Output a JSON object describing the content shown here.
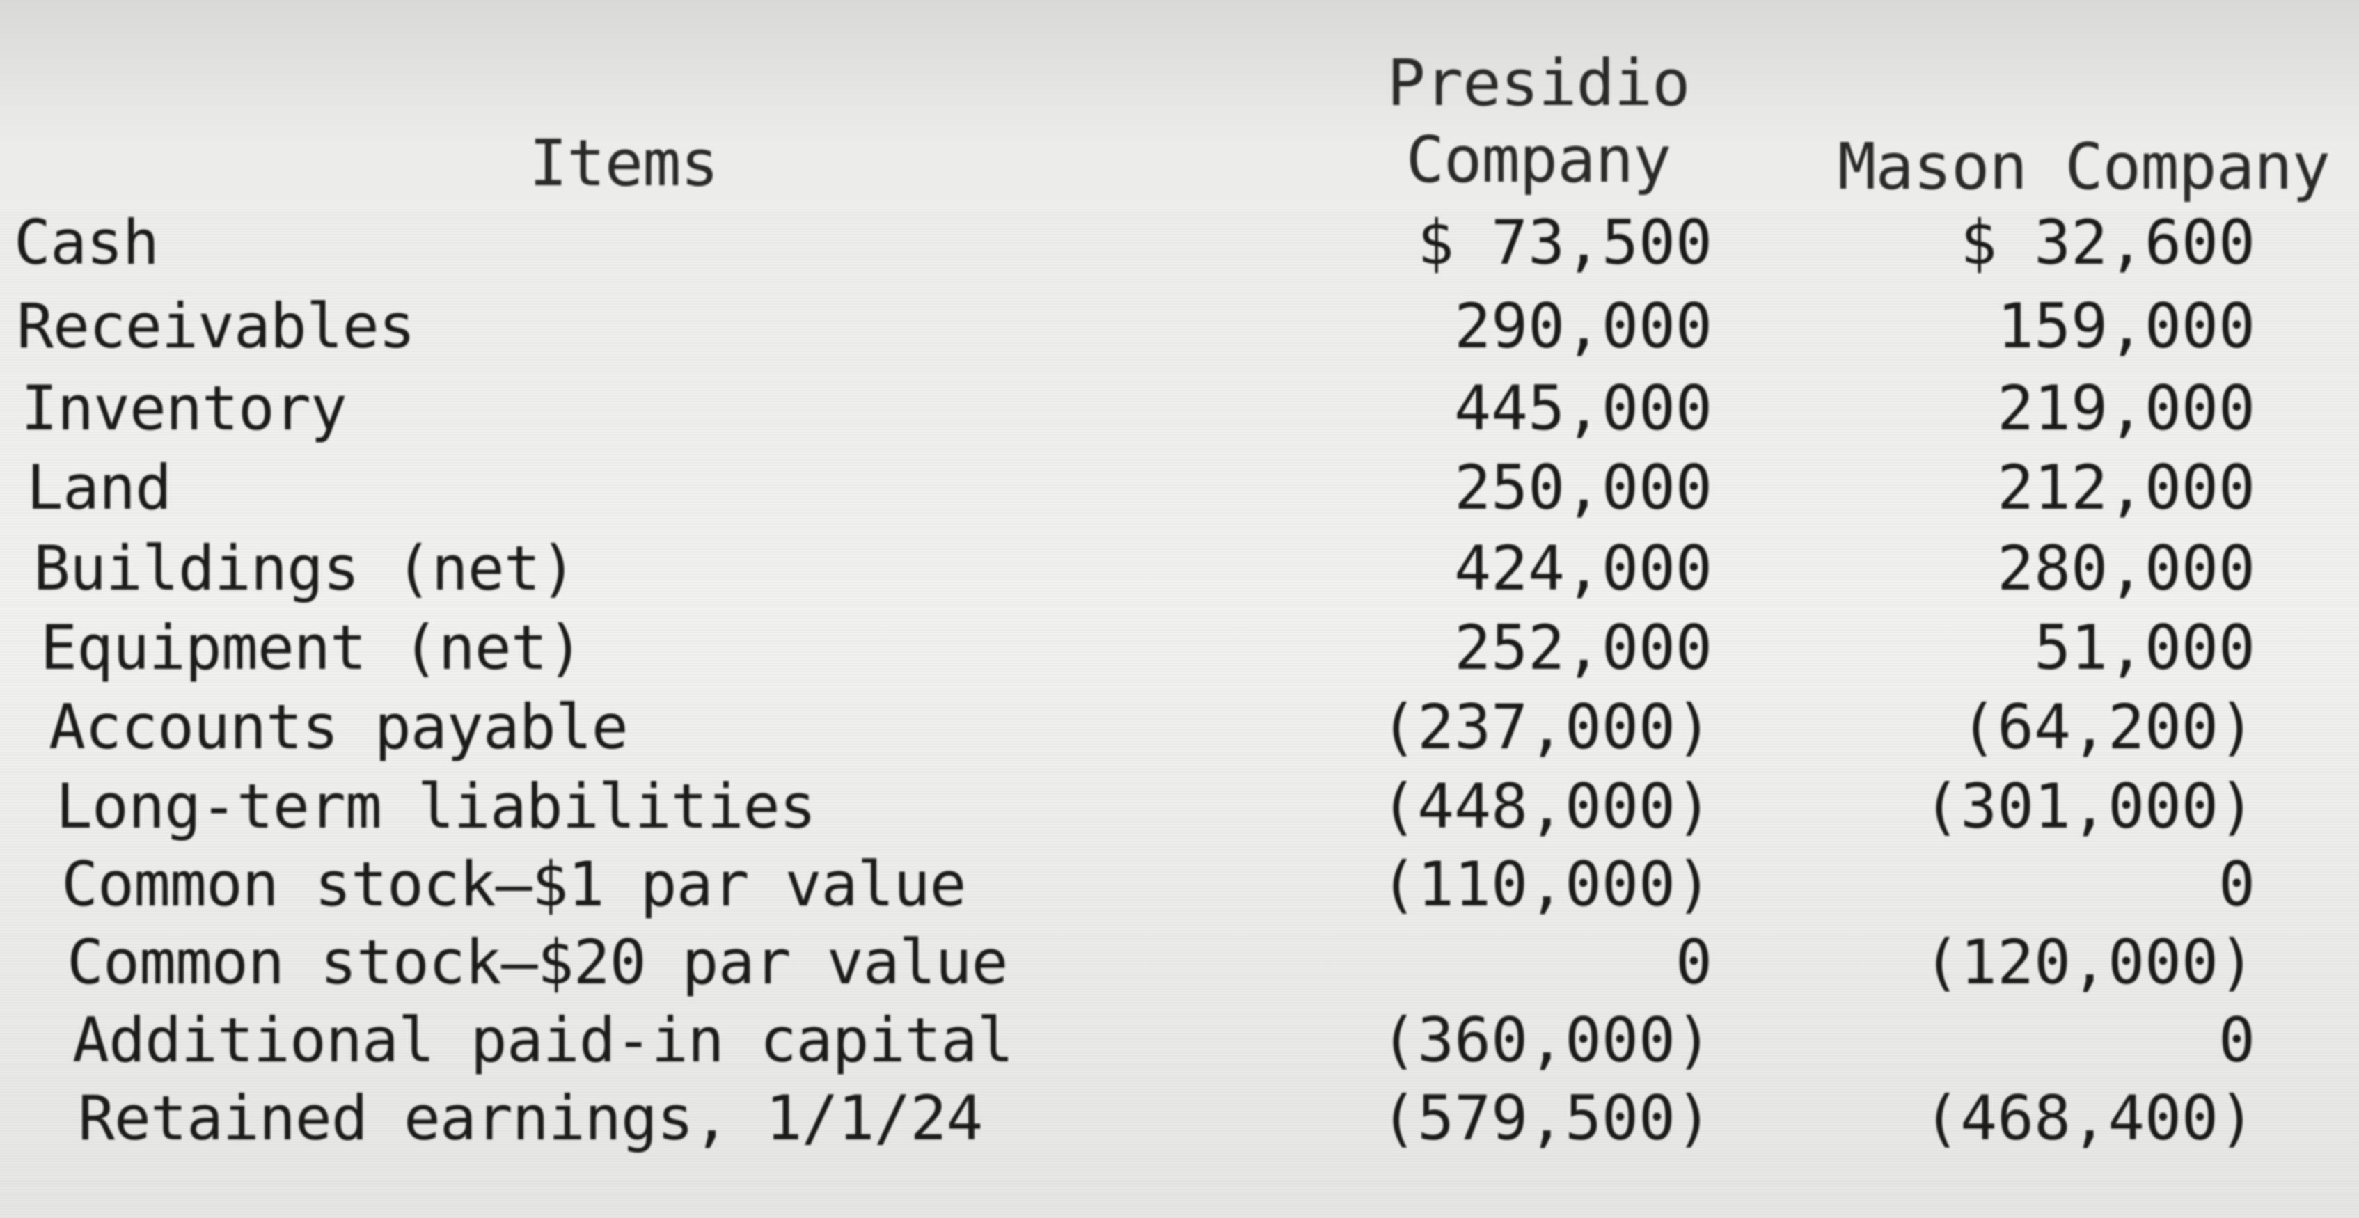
{
  "headers": {
    "items": "Items",
    "presidio_line1": "Presidio",
    "presidio_line2": "Company",
    "mason": "Mason Company"
  },
  "rows": [
    {
      "label": "Cash",
      "presidio": "$ 73,500",
      "mason": "$ 32,600"
    },
    {
      "label": "Receivables",
      "presidio": "290,000",
      "mason": "159,000"
    },
    {
      "label": "Inventory",
      "presidio": "445,000",
      "mason": "219,000"
    },
    {
      "label": "Land",
      "presidio": "250,000",
      "mason": "212,000"
    },
    {
      "label": "Buildings (net)",
      "presidio": "424,000",
      "mason": "280,000"
    },
    {
      "label": "Equipment (net)",
      "presidio": "252,000",
      "mason": "51,000"
    },
    {
      "label": "Accounts payable",
      "presidio": "(237,000)",
      "mason": "(64,200)"
    },
    {
      "label": "Long-term liabilities",
      "presidio": "(448,000)",
      "mason": "(301,000)"
    },
    {
      "label": "Common stock–$1 par value",
      "presidio": "(110,000)",
      "mason": "0"
    },
    {
      "label": "Common stock–$20 par value",
      "presidio": "0",
      "mason": "(120,000)"
    },
    {
      "label": "Additional paid-in capital",
      "presidio": "(360,000)",
      "mason": "0"
    },
    {
      "label": "Retained earnings, 1/1/24",
      "presidio": "(579,500)",
      "mason": "(468,400)"
    }
  ]
}
